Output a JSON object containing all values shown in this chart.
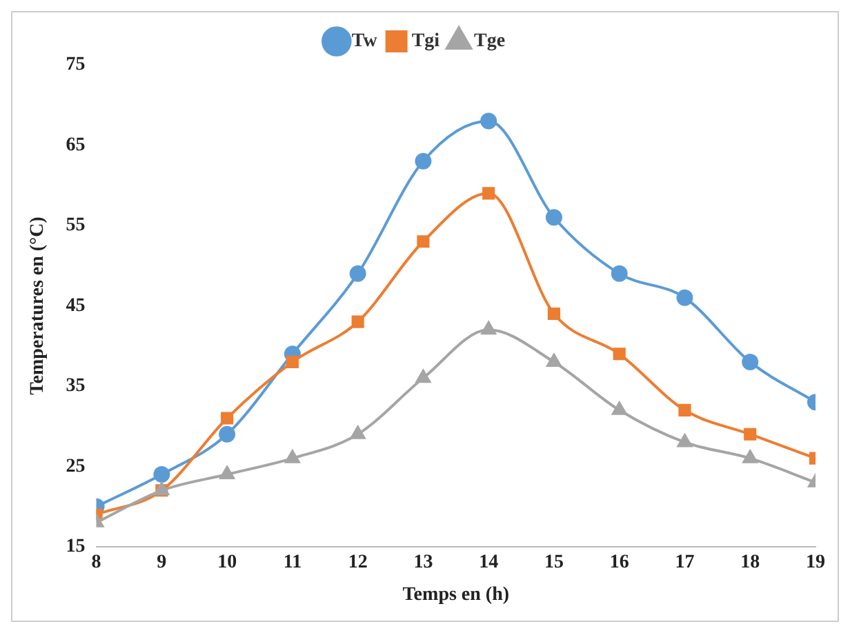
{
  "chart_data": {
    "type": "line",
    "xlabel": "Temps en (h)",
    "ylabel": "Temperatures en (°C)",
    "x": [
      8,
      9,
      10,
      11,
      12,
      13,
      14,
      15,
      16,
      17,
      18,
      19
    ],
    "xlim": [
      8,
      19
    ],
    "xticks": [
      8,
      9,
      10,
      11,
      12,
      13,
      14,
      15,
      16,
      17,
      18,
      19
    ],
    "ylim": [
      15,
      75
    ],
    "yticks": [
      15,
      25,
      35,
      45,
      55,
      65,
      75
    ],
    "grid": false,
    "legend": "top",
    "series": [
      {
        "name": "Tw",
        "color": "#5b9bd5",
        "marker": "circle",
        "values": [
          20,
          24,
          29,
          39,
          49,
          63,
          68,
          56,
          49,
          46,
          38,
          33
        ]
      },
      {
        "name": "Tgi",
        "color": "#ed7d31",
        "marker": "square",
        "values": [
          19,
          22,
          31,
          38,
          43,
          53,
          59,
          44,
          39,
          32,
          29,
          26
        ]
      },
      {
        "name": "Tge",
        "color": "#a5a5a5",
        "marker": "triangle",
        "values": [
          18,
          22,
          24,
          26,
          29,
          36,
          42,
          38,
          32,
          28,
          26,
          23
        ]
      }
    ]
  }
}
